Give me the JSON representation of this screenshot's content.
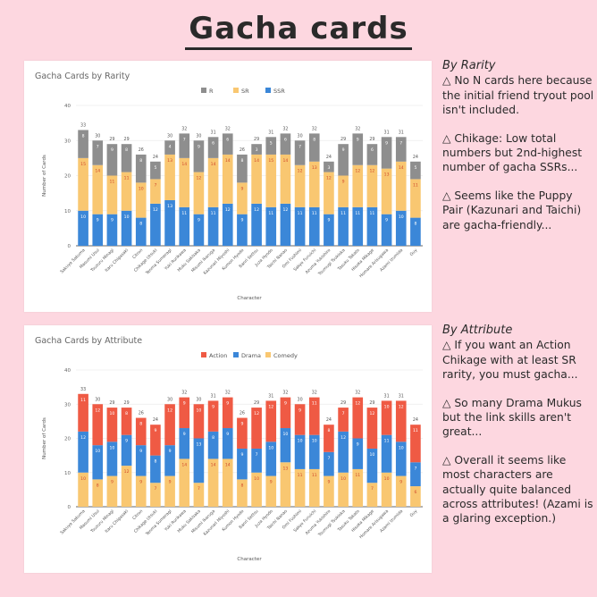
{
  "page": {
    "title": "Gacha cards",
    "bg": "#fdd7e0"
  },
  "characters": [
    "Sakuya Sakuma",
    "Masumi Usui",
    "Tsuzuru Minagi",
    "Itaru Chigasaki",
    "Citron",
    "Chikage Utsuki",
    "Tenma Sumeragi",
    "Yuki Rurikawa",
    "Muku Sakisaka",
    "Misumi Ikaruga",
    "Kazunari Miyoshi",
    "Kumon Hyodo",
    "Banri Settsu",
    "Juza Hyodo",
    "Taichi Nanao",
    "Omi Fushimi",
    "Sakyo Furuichi",
    "Azuma Yukishiro",
    "Tsumugi Tsukioka",
    "Tasuku Takato",
    "Hisoka Mikage",
    "Homare Arisugawa",
    "Azami Izumida",
    "Guy"
  ],
  "chart_data": [
    {
      "type": "bar",
      "stacked": true,
      "title": "Gacha Cards by Rarity",
      "xlabel": "Character",
      "ylabel": "Number of Cards",
      "ylim": [
        0,
        40
      ],
      "yticks": [
        0,
        10,
        20,
        30,
        40
      ],
      "legend_position": "top",
      "series": [
        {
          "name": "SSR",
          "color": "#3b87d8",
          "values": [
            10,
            9,
            9,
            10,
            8,
            12,
            13,
            11,
            9,
            11,
            12,
            9,
            12,
            11,
            12,
            11,
            11,
            9,
            11,
            11,
            11,
            9,
            10,
            8
          ]
        },
        {
          "name": "SR",
          "color": "#f9c771",
          "values": [
            15,
            14,
            11,
            11,
            10,
            7,
            13,
            14,
            12,
            14,
            14,
            9,
            14,
            15,
            14,
            12,
            13,
            12,
            9,
            12,
            12,
            13,
            14,
            11
          ]
        },
        {
          "name": "R",
          "color": "#8e8e8e",
          "values": [
            8,
            7,
            9,
            8,
            8,
            5,
            4,
            7,
            9,
            6,
            6,
            8,
            3,
            5,
            6,
            7,
            8,
            3,
            9,
            9,
            6,
            9,
            7,
            5
          ]
        }
      ],
      "totals": [
        33,
        30,
        29,
        29,
        26,
        24,
        30,
        32,
        30,
        31,
        32,
        26,
        29,
        31,
        32,
        30,
        32,
        24,
        29,
        32,
        29,
        31,
        31,
        24
      ]
    },
    {
      "type": "bar",
      "stacked": true,
      "title": "Gacha Cards by Attribute",
      "xlabel": "Character",
      "ylabel": "Number of Cards",
      "ylim": [
        0,
        40
      ],
      "yticks": [
        0,
        10,
        20,
        30,
        40
      ],
      "legend_position": "top",
      "series": [
        {
          "name": "Comedy",
          "color": "#f9c771",
          "values": [
            10,
            8,
            9,
            12,
            9,
            7,
            9,
            14,
            7,
            14,
            14,
            8,
            10,
            9,
            13,
            11,
            11,
            9,
            10,
            11,
            7,
            10,
            9,
            6
          ]
        },
        {
          "name": "Drama",
          "color": "#3b87d8",
          "values": [
            12,
            10,
            10,
            9,
            9,
            8,
            9,
            9,
            13,
            8,
            9,
            9,
            7,
            10,
            10,
            10,
            10,
            7,
            12,
            9,
            10,
            11,
            10,
            7
          ]
        },
        {
          "name": "Action",
          "color": "#ef5a44",
          "values": [
            11,
            12,
            10,
            8,
            8,
            9,
            12,
            9,
            10,
            9,
            9,
            9,
            12,
            12,
            9,
            9,
            11,
            8,
            7,
            12,
            12,
            10,
            12,
            11
          ]
        }
      ],
      "totals": [
        33,
        30,
        29,
        29,
        26,
        24,
        30,
        32,
        30,
        31,
        32,
        26,
        29,
        31,
        32,
        30,
        32,
        24,
        29,
        32,
        29,
        31,
        31,
        24
      ]
    }
  ],
  "notes": {
    "rarity": {
      "heading": "By Rarity",
      "items": [
        "△ No N cards here because the initial friend tryout pool isn't included.",
        "△ Chikage: Low total numbers but 2nd-highest number of gacha SSRs...",
        "△ Seems like the Puppy Pair (Kazunari and Taichi) are gacha-friendly..."
      ]
    },
    "attribute": {
      "heading": "By Attribute",
      "items": [
        "△ If you want an Action Chikage with at least SR rarity, you must gacha...",
        "△ So many Drama Mukus but the link skills aren't great...",
        "△ Overall it seems like most characters are actually quite balanced across attributes! (Azami is a glaring exception.)"
      ]
    }
  }
}
